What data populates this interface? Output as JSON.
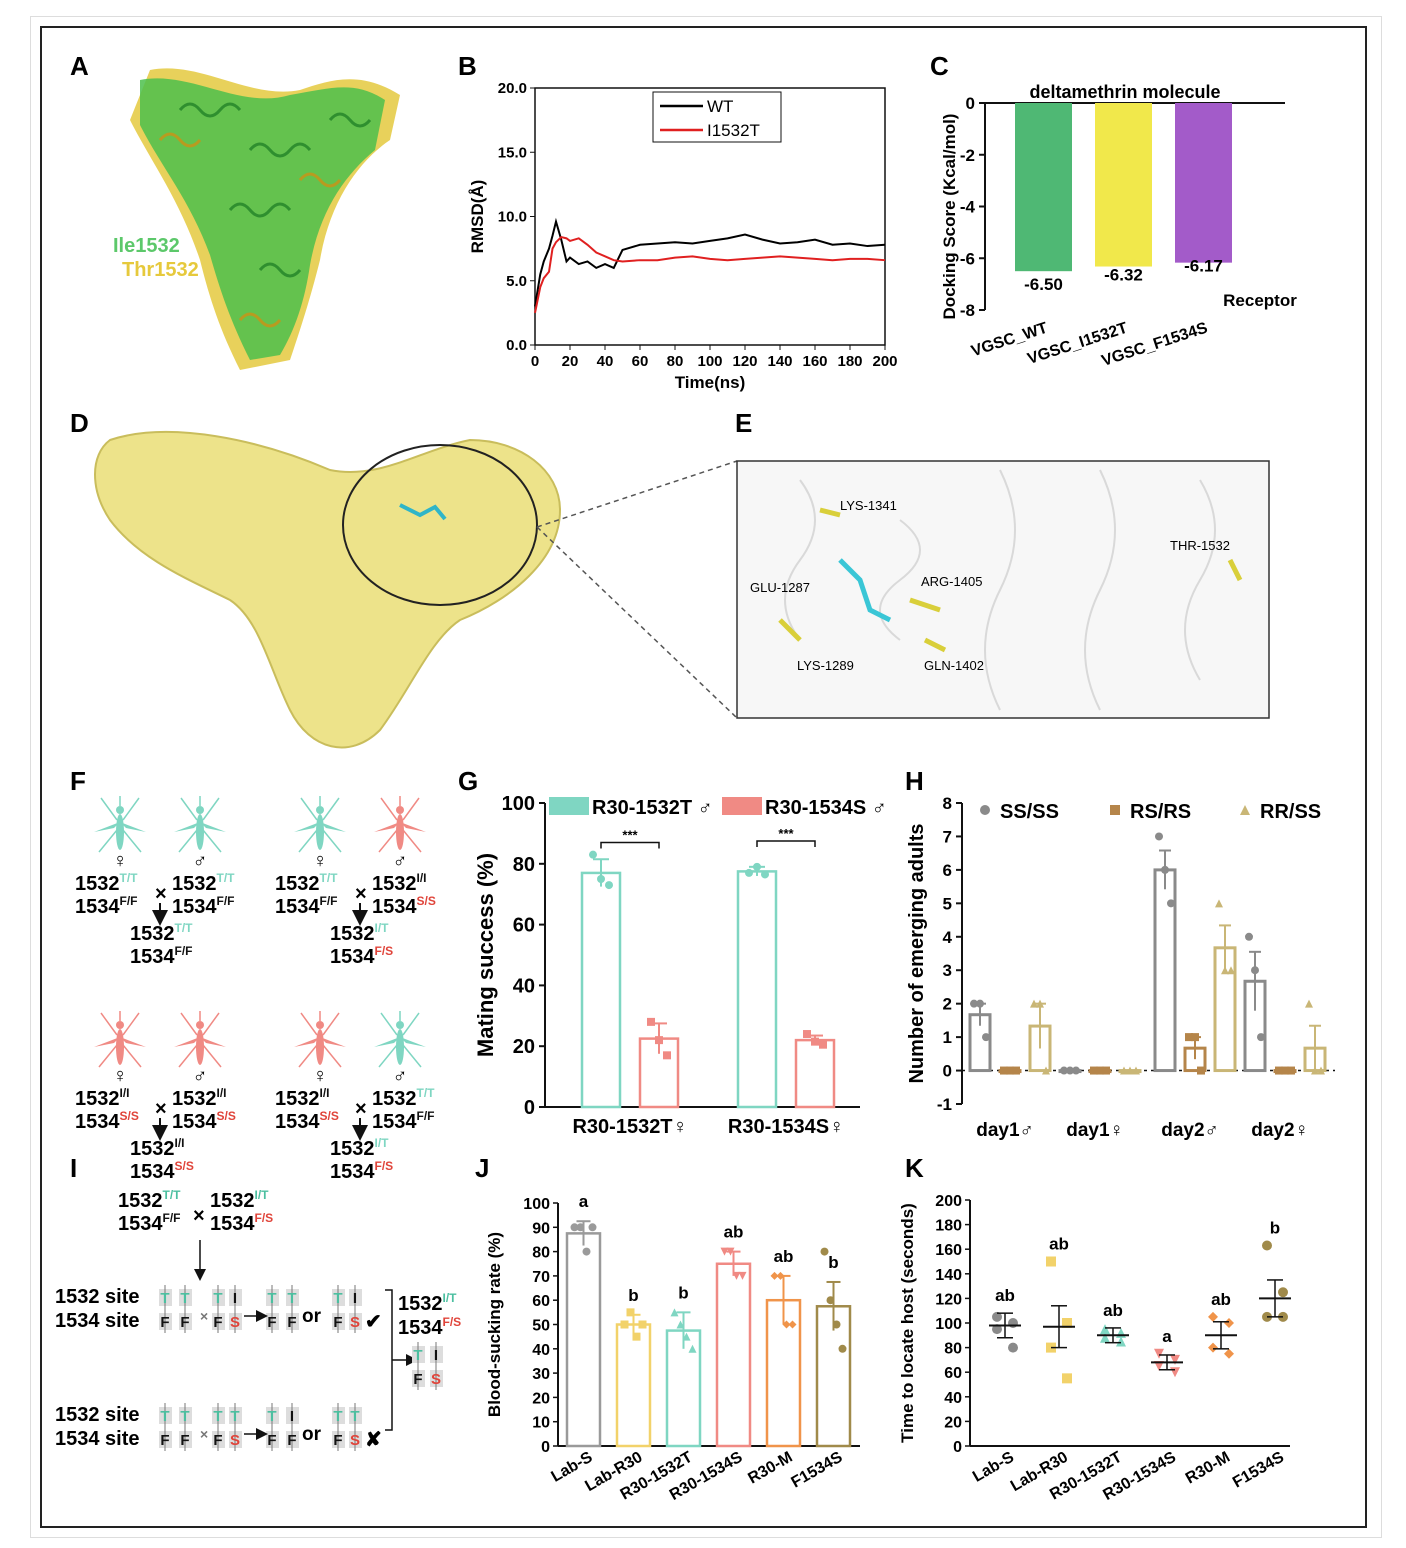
{
  "panels": {
    "A": "A",
    "B": "B",
    "C": "C",
    "D": "D",
    "E": "E",
    "F": "F",
    "G": "G",
    "H": "H",
    "I": "I",
    "J": "J",
    "K": "K"
  },
  "panelA": {
    "label1": "Ile1532",
    "label2": "Thr1532",
    "color1": "#5cc86a",
    "color2": "#e6c93c"
  },
  "panelE": {
    "residues": [
      "LYS-1341",
      "THR-1532",
      "GLU-1287",
      "ARG-1405",
      "LYS-1289",
      "GLN-1402"
    ]
  },
  "panelF": {
    "female_symbol": "♀",
    "male_symbol": "♂",
    "cross": "×",
    "crosses": [
      {
        "p1a": "1532",
        "p1a_sup": "T/T",
        "p1b": "1534",
        "p1b_sup": "F/F",
        "p2a": "1532",
        "p2a_sup": "T/T",
        "p2b": "1534",
        "p2b_sup": "F/F",
        "oa": "1532",
        "oa_sup": "T/T",
        "ob": "1534",
        "ob_sup": "F/F"
      },
      {
        "p1a": "1532",
        "p1a_sup": "T/T",
        "p1b": "1534",
        "p1b_sup": "F/F",
        "p2a": "1532",
        "p2a_sup": "I/I",
        "p2b": "1534",
        "p2b_sup": "S/S",
        "oa": "1532",
        "oa_sup": "I/T",
        "ob": "1534",
        "ob_sup": "F/S"
      },
      {
        "p1a": "1532",
        "p1a_sup": "I/I",
        "p1b": "1534",
        "p1b_sup": "S/S",
        "p2a": "1532",
        "p2a_sup": "I/I",
        "p2b": "1534",
        "p2b_sup": "S/S",
        "oa": "1532",
        "oa_sup": "I/I",
        "ob": "1534",
        "ob_sup": "S/S"
      },
      {
        "p1a": "1532",
        "p1a_sup": "I/I",
        "p1b": "1534",
        "p1b_sup": "S/S",
        "p2a": "1532",
        "p2a_sup": "T/T",
        "p2b": "1534",
        "p2b_sup": "F/F",
        "oa": "1532",
        "oa_sup": "I/T",
        "ob": "1534",
        "ob_sup": "F/S"
      }
    ]
  },
  "panelI": {
    "top_a": "1532",
    "top_a_sup": "T/T",
    "top_b": "1534",
    "top_b_sup": "F/F",
    "top_c": "1532",
    "top_c_sup": "I/T",
    "top_d": "1534",
    "top_d_sup": "F/S",
    "site1532": "1532 site",
    "site1534": "1534 site",
    "or": "or",
    "cross": "×",
    "check": "✔",
    "xmark": "✘",
    "result_a": "1532",
    "result_a_sup": "I/T",
    "result_b": "1534",
    "result_b_sup": "F/S",
    "allele_T": "T",
    "allele_I": "I",
    "allele_F": "F",
    "allele_S": "S"
  },
  "chart_data": [
    {
      "panel": "B",
      "type": "line",
      "xlabel": "Time(ns)",
      "ylabel": "RMSD(Å)",
      "xlim": [
        0,
        200
      ],
      "ylim": [
        0,
        20
      ],
      "x_ticks": [
        "0",
        "20",
        "40",
        "60",
        "80",
        "100",
        "120",
        "140",
        "160",
        "180",
        "200"
      ],
      "y_ticks": [
        "0.0",
        "5.0",
        "10.0",
        "15.0",
        "20.0"
      ],
      "series": [
        {
          "name": "WT",
          "color": "#000000",
          "x": [
            0,
            3,
            5,
            8,
            10,
            12,
            15,
            18,
            20,
            25,
            30,
            35,
            40,
            45,
            50,
            60,
            70,
            80,
            90,
            100,
            110,
            120,
            130,
            140,
            150,
            160,
            170,
            180,
            190,
            200
          ],
          "y": [
            3,
            5.5,
            6.5,
            7.5,
            8.5,
            9.6,
            8.2,
            6.5,
            6.8,
            6.3,
            6.5,
            6.0,
            6.3,
            6.0,
            7.4,
            7.8,
            7.9,
            8.0,
            7.9,
            8.1,
            8.3,
            8.6,
            8.2,
            7.9,
            8.0,
            8.2,
            7.8,
            7.9,
            7.7,
            7.8
          ]
        },
        {
          "name": "I1532T",
          "color": "#e02020",
          "x": [
            0,
            3,
            5,
            8,
            10,
            12,
            15,
            18,
            20,
            25,
            30,
            35,
            40,
            45,
            50,
            60,
            70,
            80,
            90,
            100,
            110,
            120,
            130,
            140,
            150,
            160,
            170,
            180,
            190,
            200
          ],
          "y": [
            2.5,
            4.5,
            5.2,
            5.7,
            7.5,
            8.0,
            8.4,
            8.3,
            8.1,
            8.3,
            7.8,
            7.2,
            6.9,
            6.6,
            6.5,
            6.6,
            6.6,
            6.8,
            6.9,
            6.7,
            6.6,
            6.7,
            6.8,
            6.9,
            6.8,
            6.7,
            6.6,
            6.7,
            6.7,
            6.6
          ]
        }
      ]
    },
    {
      "panel": "C",
      "type": "bar",
      "title": "deltamethrin molecule",
      "ylabel": "Docking Score (Kcal/mol)",
      "xlabel": "Receptor",
      "ylim": [
        -8,
        0
      ],
      "y_ticks": [
        "0",
        "-2",
        "-4",
        "-6",
        "-8"
      ],
      "categories": [
        "VGSC_WT",
        "VGSC_I1532T",
        "VGSC_F1534S"
      ],
      "values": [
        -6.5,
        -6.32,
        -6.17
      ],
      "value_labels": [
        "-6.50",
        "-6.32",
        "-6.17"
      ],
      "colors": [
        "#4fb874",
        "#f1e84b",
        "#a35bc9"
      ]
    },
    {
      "panel": "G",
      "type": "bar",
      "ylabel": "Mating success (%)",
      "ylim": [
        0,
        100
      ],
      "y_ticks": [
        "0",
        "20",
        "40",
        "60",
        "80",
        "100"
      ],
      "categories": [
        "R30-1532T♀",
        "R30-1534S♀"
      ],
      "series": [
        {
          "name": "R30-1532T ♂",
          "color": "#7fd6c2",
          "values": [
            77,
            77.5
          ],
          "errors": [
            4.5,
            1.5
          ],
          "points": [
            [
              83,
              75,
              73
            ],
            [
              77,
              79,
              76.5
            ]
          ]
        },
        {
          "name": "R30-1534S ♂",
          "color": "#f08a84",
          "values": [
            22.5,
            22
          ],
          "errors": [
            5,
            1.5
          ],
          "points": [
            [
              28,
              22,
              17
            ],
            [
              24,
              21.5,
              20.5
            ]
          ]
        }
      ],
      "significance": [
        "***",
        "***"
      ]
    },
    {
      "panel": "H",
      "type": "bar",
      "ylabel": "Number of emerging adults",
      "ylim": [
        -1,
        8
      ],
      "y_ticks": [
        "-1",
        "0",
        "1",
        "2",
        "3",
        "4",
        "5",
        "6",
        "7",
        "8"
      ],
      "categories": [
        "day1♂",
        "day1♀",
        "day2♂",
        "day2♀"
      ],
      "series": [
        {
          "name": "SS/SS",
          "color": "#8a8a8a",
          "marker": "circle",
          "values": [
            1.67,
            0,
            6.0,
            2.67
          ],
          "errors": [
            0.33,
            0,
            0.58,
            0.88
          ],
          "points": [
            [
              2,
              2,
              1
            ],
            [
              0,
              0,
              0
            ],
            [
              7,
              6,
              5
            ],
            [
              4,
              3,
              1
            ]
          ]
        },
        {
          "name": "RS/RS",
          "color": "#b5854a",
          "marker": "square",
          "values": [
            0,
            0,
            0.67,
            0
          ],
          "errors": [
            0,
            0,
            0.33,
            0
          ],
          "points": [
            [
              0,
              0,
              0
            ],
            [
              0,
              0,
              0
            ],
            [
              1,
              1,
              0
            ],
            [
              0,
              0,
              0
            ]
          ]
        },
        {
          "name": "RR/SS",
          "color": "#c9b676",
          "marker": "triangle",
          "values": [
            1.33,
            0,
            3.67,
            0.67
          ],
          "errors": [
            0.67,
            0,
            0.67,
            0.67
          ],
          "points": [
            [
              2,
              2,
              0
            ],
            [
              0,
              0,
              0
            ],
            [
              5,
              3,
              3
            ],
            [
              2,
              0,
              0
            ]
          ]
        }
      ]
    },
    {
      "panel": "J",
      "type": "bar",
      "ylabel": "Blood-sucking rate (%)",
      "ylim": [
        0,
        100
      ],
      "y_ticks": [
        "0",
        "10",
        "20",
        "30",
        "40",
        "50",
        "60",
        "70",
        "80",
        "90",
        "100"
      ],
      "categories": [
        "Lab-S",
        "Lab-R30",
        "R30-1532T",
        "R30-1534S",
        "R30-M",
        "F1534S"
      ],
      "values": [
        87.5,
        50,
        47.5,
        75,
        60,
        57.5
      ],
      "errors": [
        5,
        4,
        7.5,
        5,
        10,
        10
      ],
      "letters": [
        "a",
        "b",
        "b",
        "ab",
        "ab",
        "b"
      ],
      "colors": [
        "#9a9a9a",
        "#f2d26a",
        "#7fd6c2",
        "#f08a84",
        "#f0944a",
        "#a08a4a"
      ],
      "markers": [
        "circle",
        "square",
        "triangle",
        "triangle-down",
        "diamond",
        "circle"
      ],
      "points": [
        [
          90,
          90,
          80,
          90
        ],
        [
          50,
          55,
          45,
          50
        ],
        [
          55,
          50,
          45,
          40
        ],
        [
          80,
          80,
          70,
          70
        ],
        [
          70,
          70,
          50,
          50
        ],
        [
          80,
          60,
          50,
          40
        ]
      ]
    },
    {
      "panel": "K",
      "type": "scatter",
      "ylabel": "Time to locate host (seconds)",
      "ylim": [
        0,
        200
      ],
      "y_ticks": [
        "0",
        "20",
        "40",
        "60",
        "80",
        "100",
        "120",
        "140",
        "160",
        "180",
        "200"
      ],
      "categories": [
        "Lab-S",
        "Lab-R30",
        "R30-1532T",
        "R30-1534S",
        "R30-M",
        "F1534S"
      ],
      "means": [
        98,
        97,
        90,
        68,
        90,
        120
      ],
      "errors": [
        10,
        17,
        6,
        6,
        11,
        15
      ],
      "letters": [
        "ab",
        "ab",
        "ab",
        "a",
        "ab",
        "b"
      ],
      "colors": [
        "#8a8a8a",
        "#f2d26a",
        "#7fd6c2",
        "#f08a84",
        "#f0944a",
        "#a08a4a"
      ],
      "markers": [
        "circle",
        "square",
        "triangle",
        "triangle-down",
        "diamond",
        "circle"
      ],
      "points": [
        [
          105,
          100,
          95,
          80
        ],
        [
          150,
          100,
          80,
          55
        ],
        [
          95,
          92,
          88,
          85
        ],
        [
          75,
          70,
          65,
          60
        ],
        [
          105,
          100,
          80,
          75
        ],
        [
          163,
          125,
          105,
          105
        ]
      ]
    }
  ]
}
